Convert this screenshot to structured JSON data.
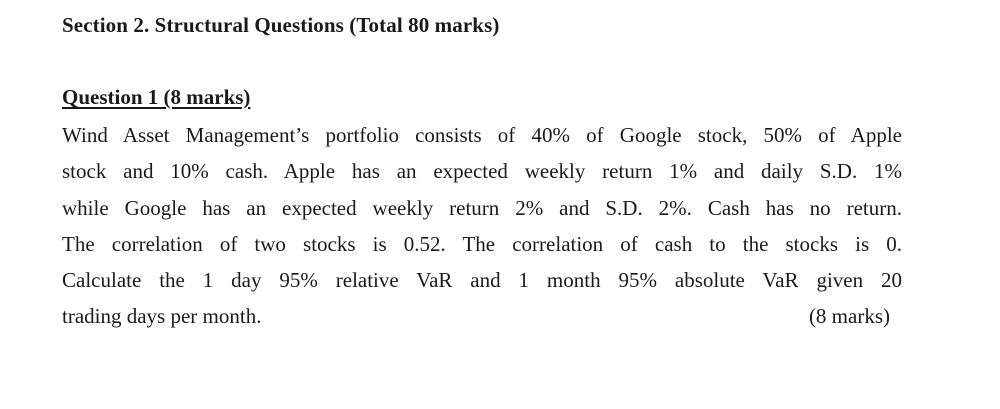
{
  "section": {
    "title": "Section 2. Structural Questions (Total 80 marks)"
  },
  "question": {
    "title": "Question 1 (8 marks)",
    "lines": [
      "Wind Asset Management’s portfolio consists of 40% of Google stock, 50% of Apple",
      "stock and 10% cash. Apple has an expected weekly return 1% and daily S.D. 1%",
      "while Google has an expected weekly return 2% and S.D. 2%. Cash has no return.",
      "The correlation of two stocks is 0.52. The correlation of cash to the stocks is 0.",
      "Calculate the 1 day 95% relative VaR and 1 month 95% absolute VaR given 20"
    ],
    "last_line": "trading days per month.",
    "marks": "(8 marks)"
  }
}
